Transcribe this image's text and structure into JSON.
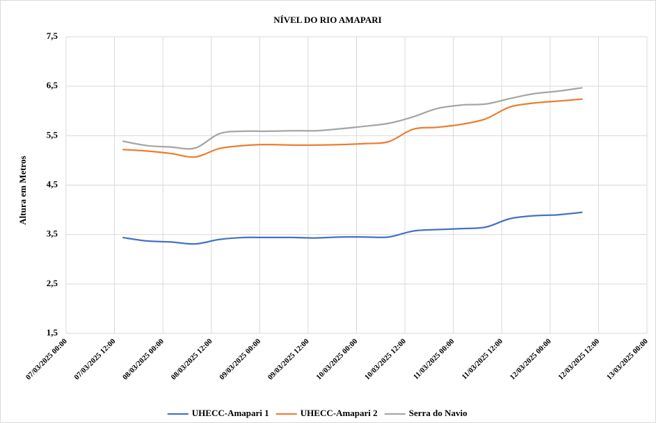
{
  "chart_data": {
    "type": "line",
    "title": "NÍVEL DO RIO AMAPARI",
    "y_label": "Altura em Metros",
    "x": [
      "07/03/2025 14:00",
      "07/03/2025 20:00",
      "08/03/2025 02:00",
      "08/03/2025 08:00",
      "08/03/2025 14:00",
      "08/03/2025 20:00",
      "09/03/2025 02:00",
      "09/03/2025 08:00",
      "09/03/2025 14:00",
      "09/03/2025 20:00",
      "10/03/2025 02:00",
      "10/03/2025 08:00",
      "10/03/2025 14:00",
      "10/03/2025 20:00",
      "11/03/2025 02:00",
      "11/03/2025 08:00",
      "11/03/2025 14:00",
      "11/03/2025 20:00",
      "12/03/2025 02:00",
      "12/03/2025 08:00"
    ],
    "series": [
      {
        "name": "UHECC-Amapari 1",
        "color": "#4472c4",
        "values": [
          3.44,
          3.37,
          3.35,
          3.31,
          3.4,
          3.44,
          3.44,
          3.44,
          3.43,
          3.45,
          3.45,
          3.45,
          3.57,
          3.6,
          3.62,
          3.65,
          3.82,
          3.88,
          3.9,
          3.95
        ]
      },
      {
        "name": "UHECC-Amapari 2",
        "color": "#ed7d31",
        "values": [
          5.22,
          5.19,
          5.14,
          5.07,
          5.24,
          5.3,
          5.32,
          5.31,
          5.31,
          5.32,
          5.34,
          5.38,
          5.63,
          5.67,
          5.73,
          5.84,
          6.08,
          6.16,
          6.2,
          6.24
        ]
      },
      {
        "name": "Serra do Navio",
        "color": "#a5a5a5",
        "values": [
          5.39,
          5.3,
          5.27,
          5.25,
          5.54,
          5.59,
          5.59,
          5.6,
          5.6,
          5.64,
          5.69,
          5.75,
          5.88,
          6.05,
          6.12,
          6.14,
          6.25,
          6.35,
          6.4,
          6.47
        ]
      }
    ],
    "xlim": [
      "07/03/2025 00:00",
      "13/03/2025 00:00"
    ],
    "xticks": [
      "07/03/2025 00:00",
      "07/03/2025 12:00",
      "08/03/2025 00:00",
      "08/03/2025 12:00",
      "09/03/2025 00:00",
      "09/03/2025 12:00",
      "10/03/2025 00:00",
      "10/03/2025 12:00",
      "11/03/2025 00:00",
      "11/03/2025 12:00",
      "12/03/2025 00:00",
      "12/03/2025 12:00",
      "13/03/2025 00:00"
    ],
    "ylim": [
      1.5,
      7.5
    ],
    "yticks": [
      {
        "value": 1.5,
        "label": "1,5"
      },
      {
        "value": 2.5,
        "label": "2,5"
      },
      {
        "value": 3.5,
        "label": "3,5"
      },
      {
        "value": 4.5,
        "label": "4,5"
      },
      {
        "value": 5.5,
        "label": "5,5"
      },
      {
        "value": 6.5,
        "label": "6,5"
      },
      {
        "value": 7.5,
        "label": "7,5"
      }
    ],
    "grid": true,
    "legend": "bottom"
  }
}
